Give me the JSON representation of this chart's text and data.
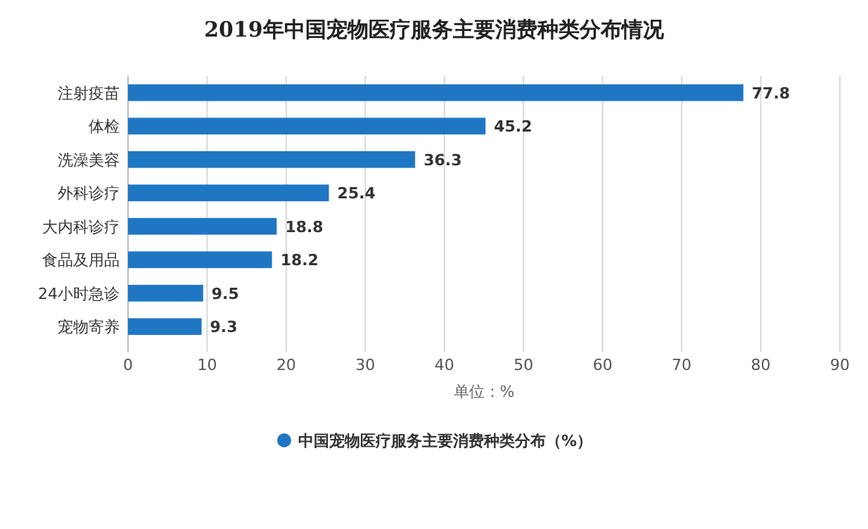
{
  "chart_data": {
    "type": "bar",
    "orientation": "horizontal",
    "title": "2019年中国宠物医疗服务主要消费种类分布情况",
    "xlabel": "单位：%",
    "categories": [
      "注射疫苗",
      "体检",
      "洗澡美容",
      "外科诊疗",
      "大内科诊疗",
      "食品及用品",
      "24小时急诊",
      "宠物寄养"
    ],
    "series": [
      {
        "name": "中国宠物医疗服务主要消费种类分布（%）",
        "color": "#1f77c4",
        "values": [
          77.8,
          45.2,
          36.3,
          25.4,
          18.8,
          18.2,
          9.5,
          9.3
        ]
      }
    ],
    "xlim": [
      0,
      90
    ],
    "xticks": [
      0,
      10,
      20,
      30,
      40,
      50,
      60,
      70,
      80,
      90
    ],
    "grid": "x",
    "data_labels": true,
    "legend": "bottom"
  }
}
